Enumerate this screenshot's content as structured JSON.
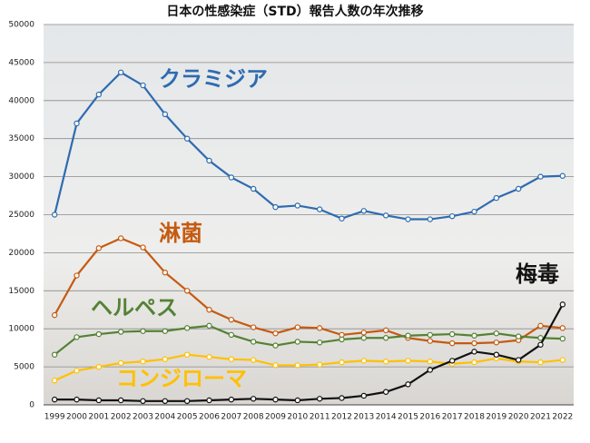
{
  "chart_data": {
    "type": "line",
    "title": "日本の性感染症（STD）報告人数の年次推移",
    "categories": [
      "1999",
      "2000",
      "2001",
      "2002",
      "2003",
      "2004",
      "2005",
      "2006",
      "2007",
      "2008",
      "2009",
      "2010",
      "2011",
      "2012",
      "2013",
      "2014",
      "2015",
      "2016",
      "2017",
      "2018",
      "2019",
      "2020",
      "2021",
      "2022"
    ],
    "ylim": [
      0,
      50000
    ],
    "yticks": [
      0,
      5000,
      10000,
      15000,
      20000,
      25000,
      30000,
      35000,
      40000,
      45000,
      50000
    ],
    "grid": true,
    "series": [
      {
        "name": "クラミジア",
        "color": "#2e6bb0",
        "values": [
          25000,
          37000,
          40800,
          43700,
          42000,
          38200,
          35000,
          32100,
          29900,
          28400,
          26000,
          26200,
          25700,
          24500,
          25500,
          24900,
          24400,
          24400,
          24800,
          25400,
          27200,
          28400,
          30000,
          30100
        ]
      },
      {
        "name": "淋菌",
        "color": "#c55a11",
        "values": [
          11800,
          17000,
          20600,
          21900,
          20700,
          17400,
          15000,
          12500,
          11200,
          10200,
          9400,
          10200,
          10100,
          9200,
          9500,
          9800,
          8800,
          8400,
          8100,
          8100,
          8200,
          8500,
          10400,
          10100
        ]
      },
      {
        "name": "ヘルペス",
        "color": "#548235",
        "values": [
          6600,
          8900,
          9300,
          9600,
          9700,
          9700,
          10100,
          10400,
          9200,
          8300,
          7800,
          8300,
          8200,
          8600,
          8800,
          8800,
          9100,
          9200,
          9300,
          9100,
          9400,
          9000,
          8800,
          8700
        ]
      },
      {
        "name": "コンジローマ",
        "color": "#ffc000",
        "values": [
          3200,
          4500,
          5000,
          5500,
          5700,
          6000,
          6600,
          6300,
          6000,
          5900,
          5200,
          5200,
          5300,
          5600,
          5800,
          5700,
          5800,
          5700,
          5400,
          5600,
          6100,
          5700,
          5600,
          5900
        ]
      },
      {
        "name": "梅毒",
        "color": "#111111",
        "values": [
          700,
          700,
          600,
          600,
          500,
          500,
          500,
          600,
          700,
          800,
          700,
          600,
          800,
          900,
          1200,
          1700,
          2700,
          4600,
          5800,
          7000,
          6600,
          5900,
          7900,
          13200
        ]
      }
    ]
  }
}
